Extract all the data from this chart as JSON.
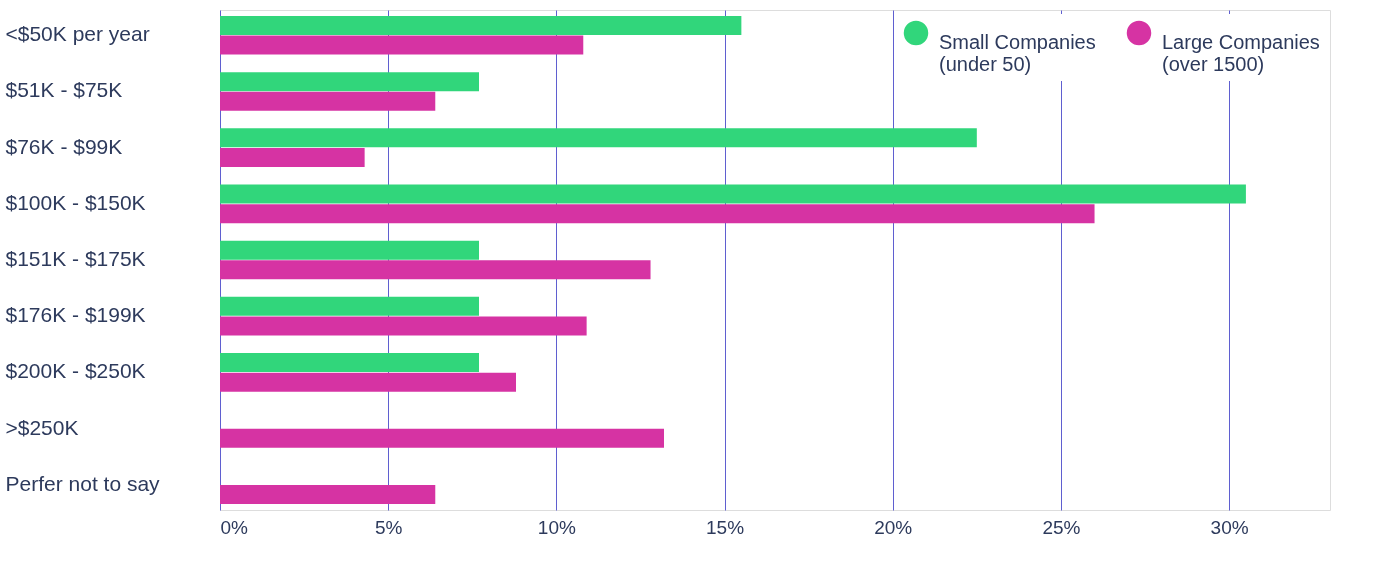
{
  "chart_data": {
    "type": "bar",
    "orientation": "horizontal",
    "categories": [
      "<$50K per year",
      "$51K - $75K",
      "$76K - $99K",
      "$100K - $150K",
      "$151K - $175K",
      "$176K - $199K",
      "$200K - $250K",
      ">$250K",
      "Perfer not to say"
    ],
    "series": [
      {
        "name": "Small Companies (under 50)",
        "color": "#31d67b",
        "values": [
          15.5,
          7.7,
          22.5,
          30.5,
          7.7,
          7.7,
          7.7,
          null,
          null
        ]
      },
      {
        "name": "Large Companies (over 1500)",
        "color": "#d633a3",
        "values": [
          10.8,
          6.4,
          4.3,
          26.0,
          12.8,
          10.9,
          8.8,
          13.2,
          6.4
        ]
      }
    ],
    "xlim": [
      0,
      33
    ],
    "xticks": [
      {
        "value": 0,
        "label": "0%"
      },
      {
        "value": 5,
        "label": "5%"
      },
      {
        "value": 10,
        "label": "10%"
      },
      {
        "value": 15,
        "label": "15%"
      },
      {
        "value": 20,
        "label": "20%"
      },
      {
        "value": 25,
        "label": "25%"
      },
      {
        "value": 30,
        "label": "30%"
      }
    ],
    "grid": "x",
    "legend": "top right"
  }
}
